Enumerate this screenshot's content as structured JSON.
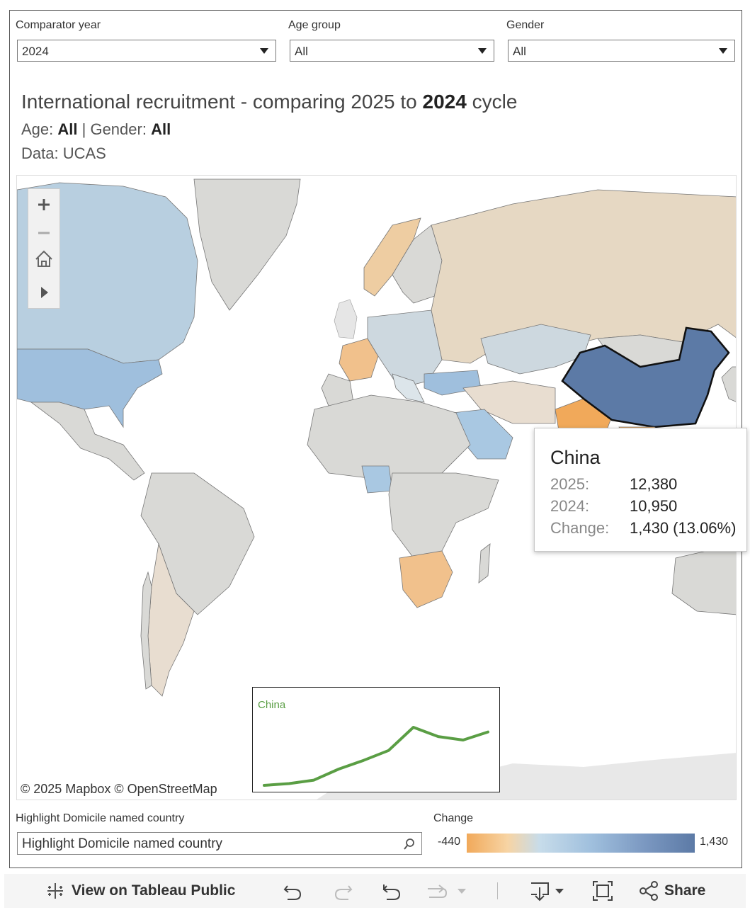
{
  "filters": [
    {
      "label": "Comparator year",
      "value": "2024"
    },
    {
      "label": "Age group",
      "value": "All"
    },
    {
      "label": "Gender",
      "value": "All"
    }
  ],
  "title": {
    "prefix": "International recruitment - comparing 2025 to ",
    "year": "2024",
    "suffix": " cycle"
  },
  "subtitle": {
    "age_label": "Age: ",
    "age_value": "All",
    "sep": " | ",
    "gender_label": "Gender: ",
    "gender_value": "All"
  },
  "source": "Data: UCAS",
  "map": {
    "attribution": "© 2025 Mapbox  © OpenStreetMap",
    "selected_country": "China",
    "colors": {
      "most_positive": "#5c7aa6",
      "positive": "#9fbfdd",
      "neutral": "#d9d9d6",
      "negative": "#f1a95a"
    }
  },
  "zoom_controls": {
    "zoom_in": "zoom-in-icon",
    "zoom_out": "zoom-out-icon",
    "home": "home-icon",
    "expand": "play-icon"
  },
  "tooltip": {
    "country": "China",
    "rows": [
      {
        "label": "2025:",
        "value": "12,380"
      },
      {
        "label": "2024:",
        "value": "10,950"
      },
      {
        "label": "Change:",
        "value": "1,430 (13.06%)"
      }
    ]
  },
  "inset_chart": {
    "label": "China",
    "color": "#5a9e44",
    "chart_data": {
      "type": "line",
      "series": [
        {
          "name": "China",
          "values": [
            0,
            3,
            9,
            28,
            43,
            60,
            100,
            84,
            78,
            92
          ]
        }
      ]
    }
  },
  "highlight": {
    "label": "Highlight Domicile named country",
    "placeholder": "Highlight Domicile named country"
  },
  "legend": {
    "label": "Change",
    "min": "-440",
    "max": "1,430"
  },
  "toolbar": {
    "view_label": "View on Tableau Public",
    "share_label": "Share",
    "icons": [
      "tableau-icon",
      "undo-icon",
      "redo-icon",
      "revert-icon",
      "refresh-icon",
      "download-icon",
      "fullscreen-icon",
      "share-icon"
    ]
  }
}
